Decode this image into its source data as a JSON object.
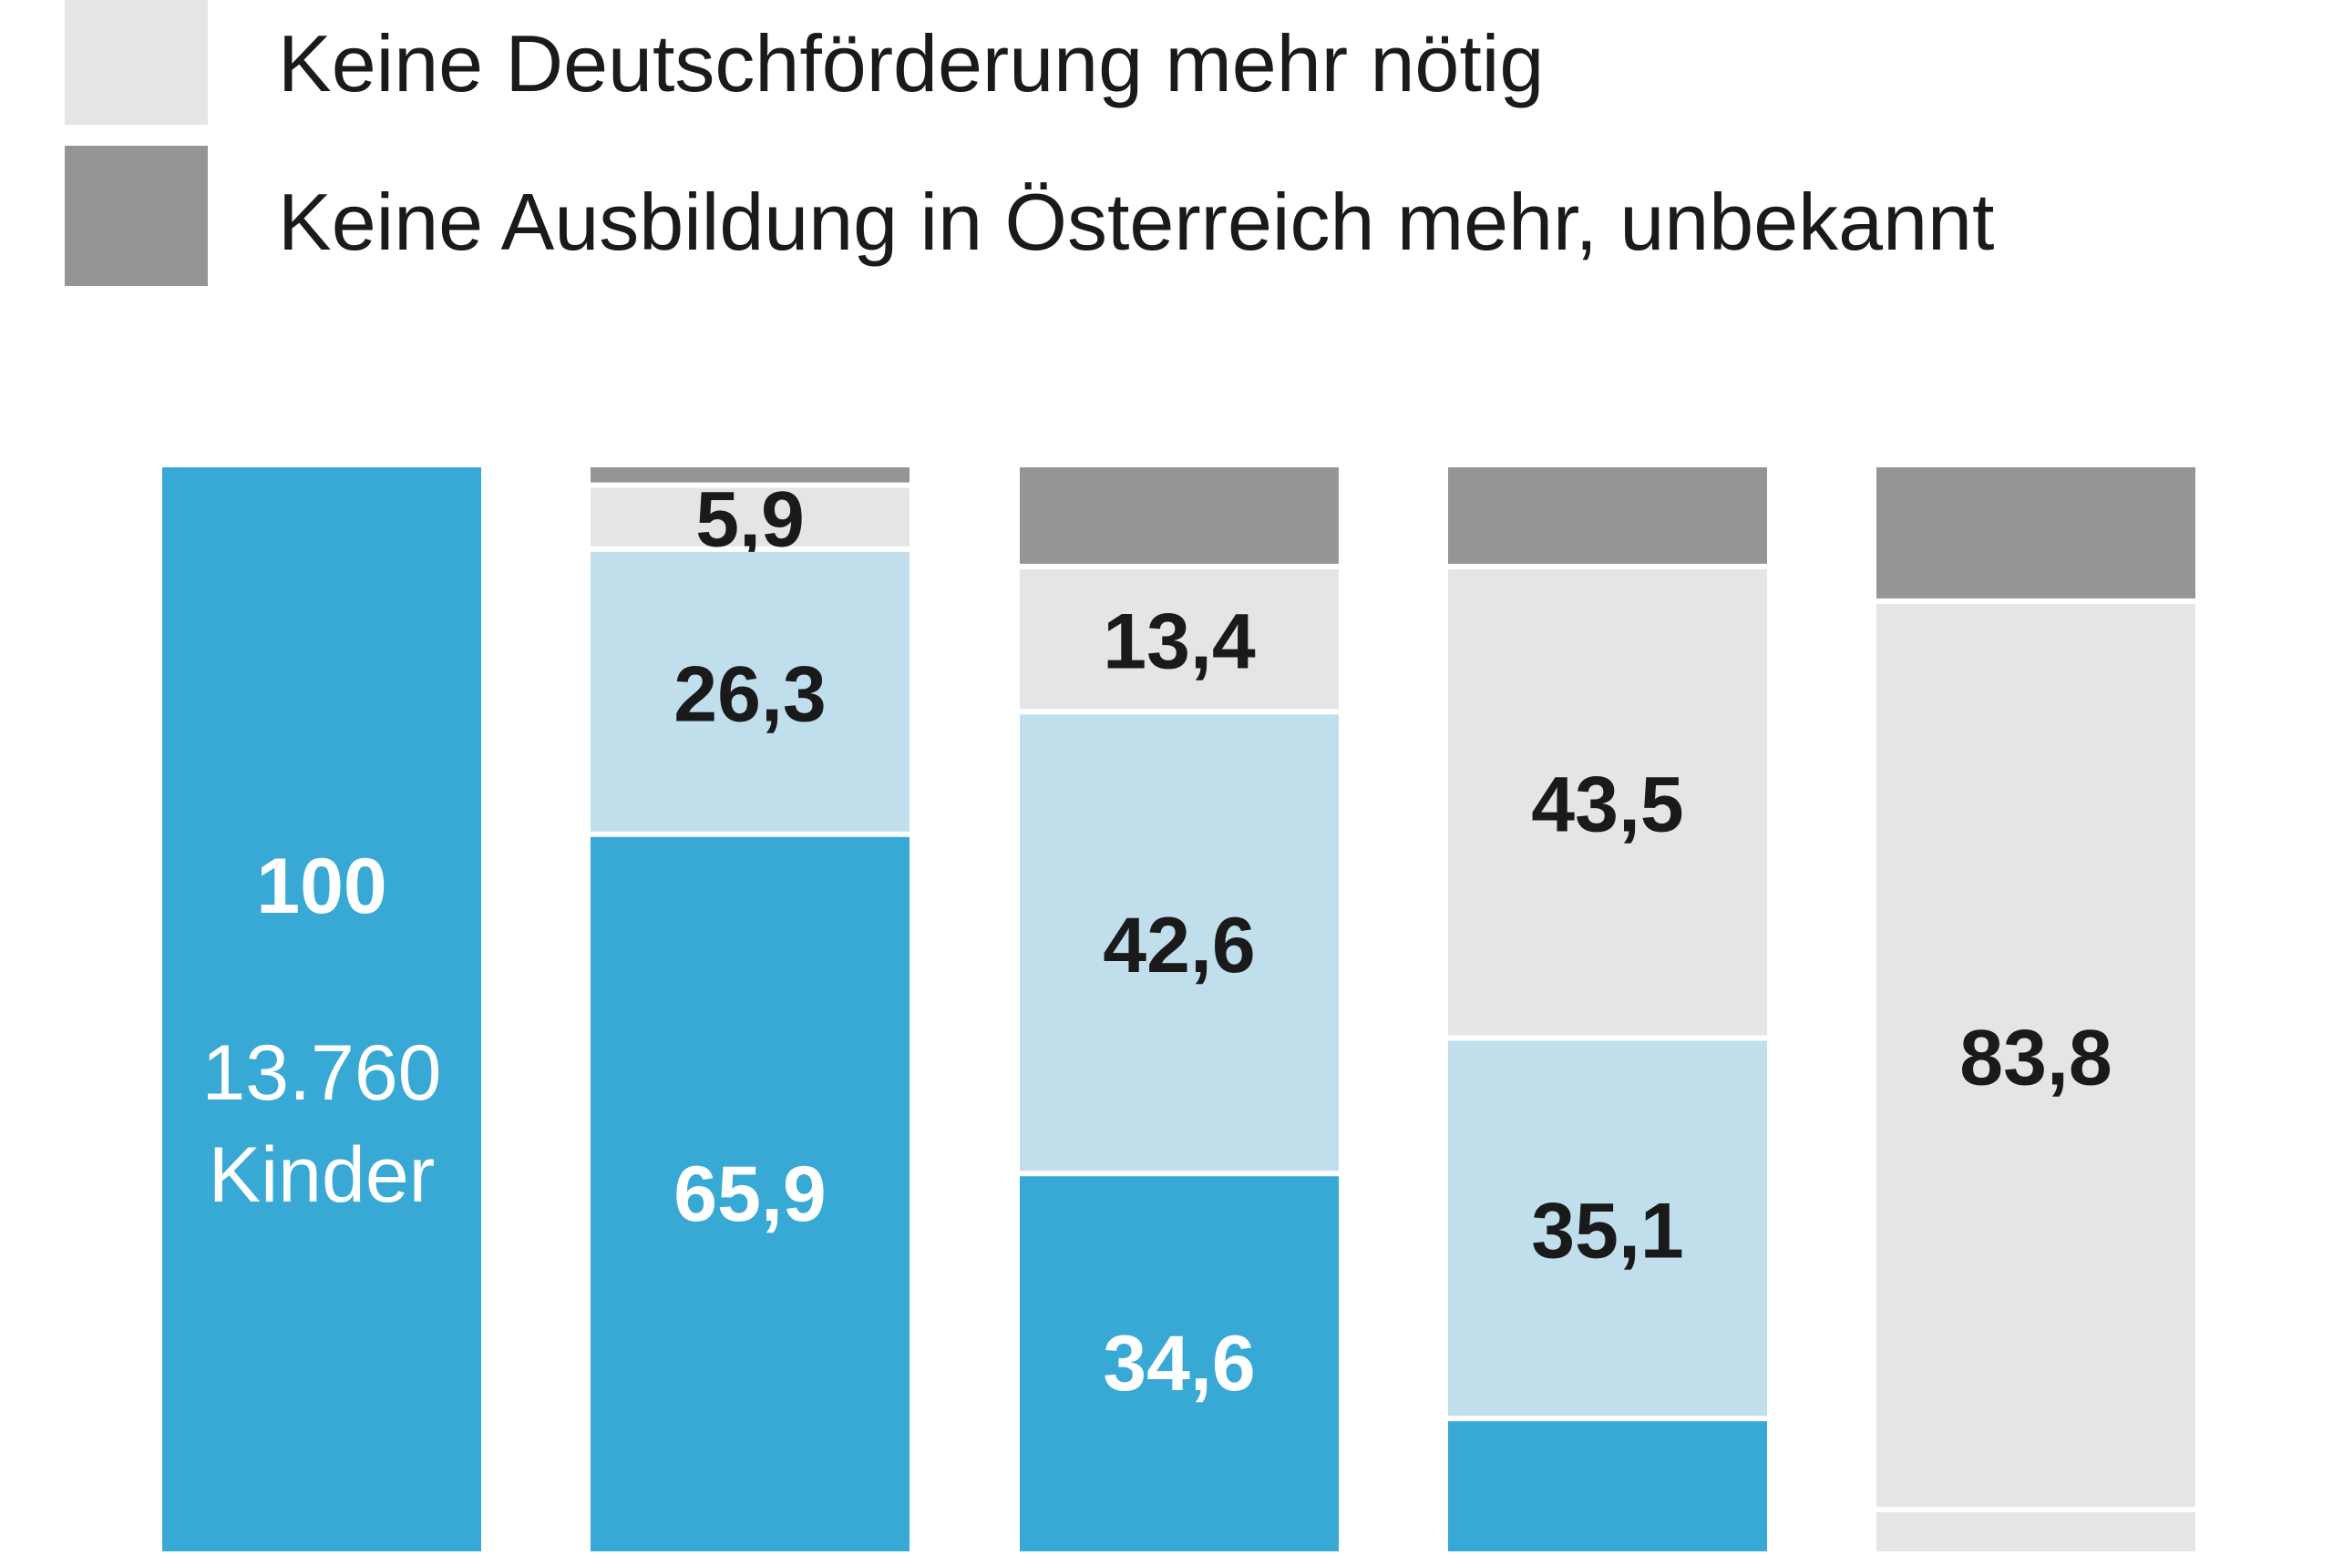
{
  "chart_data": {
    "type": "bar",
    "stacked": true,
    "unit": "percent",
    "colors": {
      "blue": "#38a8d4",
      "light_blue": "#c0deec",
      "light_grey": "#e4e5e7",
      "dark_grey": "#959595"
    },
    "legend": [
      {
        "label": "Keine Deutschförderung mehr nötig",
        "color": "#e4e5e7"
      },
      {
        "label": "Keine Ausbildung in Österreich mehr, unbekannt",
        "color": "#959595"
      }
    ],
    "bars": [
      {
        "segments": [
          {
            "value": 100,
            "label": "100",
            "color": "#38a8d4",
            "note": [
              "13.760",
              "Kinder"
            ]
          }
        ]
      },
      {
        "segments": [
          {
            "value": 65.9,
            "label": "65,9",
            "color": "#38a8d4"
          },
          {
            "value": 26.3,
            "label": "26,3",
            "color": "#c0deec"
          },
          {
            "value": 5.9,
            "label": "5,9",
            "color": "#e4e5e7"
          },
          {
            "value": 1.9,
            "label": "",
            "color": "#959595"
          }
        ]
      },
      {
        "segments": [
          {
            "value": 34.6,
            "label": "34,6",
            "color": "#38a8d4"
          },
          {
            "value": 42.6,
            "label": "42,6",
            "color": "#c0deec"
          },
          {
            "value": 13.4,
            "label": "13,4",
            "color": "#e4e5e7"
          },
          {
            "value": 9.4,
            "label": "",
            "color": "#959595"
          }
        ]
      },
      {
        "segments": [
          {
            "value": 12.0,
            "label": "",
            "color": "#38a8d4"
          },
          {
            "value": 35.1,
            "label": "35,1",
            "color": "#c0deec"
          },
          {
            "value": 43.5,
            "label": "43,5",
            "color": "#e4e5e7"
          },
          {
            "value": 9.4,
            "label": "",
            "color": "#959595"
          }
        ]
      },
      {
        "segments": [
          {
            "value": 3.6,
            "label": "",
            "color": "#e4e5e7"
          },
          {
            "value": 83.8,
            "label": "83,8",
            "color": "#e4e5e7"
          },
          {
            "value": 12.6,
            "label": "",
            "color": "#959595"
          }
        ]
      }
    ]
  }
}
